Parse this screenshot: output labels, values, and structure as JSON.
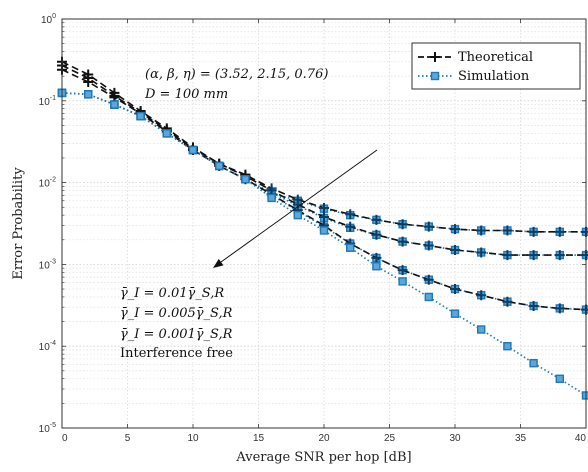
{
  "chart_data": {
    "type": "line",
    "xlabel": "Average SNR per hop [dB]",
    "ylabel": "Error Probability",
    "xlim": [
      0,
      40
    ],
    "ylim": [
      1e-05,
      1
    ],
    "yscale": "log",
    "grid": true,
    "legend_position": "top-right",
    "x_ticks": [
      0,
      5,
      10,
      15,
      20,
      25,
      30,
      35,
      40
    ],
    "x_tick_labels": [
      "0",
      "5",
      "10",
      "15",
      "20",
      "25",
      "30",
      "35",
      "40"
    ],
    "y_ticks": [
      1e-05,
      0.0001,
      0.001,
      0.01,
      0.1,
      1
    ],
    "y_tick_labels": [
      {
        "base": "10",
        "exp": "-5"
      },
      {
        "base": "10",
        "exp": "-4"
      },
      {
        "base": "10",
        "exp": "-3"
      },
      {
        "base": "10",
        "exp": "-2"
      },
      {
        "base": "10",
        "exp": "-1"
      },
      {
        "base": "10",
        "exp": "0"
      }
    ],
    "legend": [
      {
        "label": "Theoretical",
        "style": "dashed-black-plus"
      },
      {
        "label": "Simulation",
        "style": "dotted-blue-square"
      }
    ],
    "annotations": {
      "params_line1": "(α, β, η) = (3.52, 2.15, 0.76)",
      "params_line2": "D = 100 mm",
      "curve_labels": [
        "γ̄_I = 0.01γ̄_S,R",
        "γ̄_I = 0.005γ̄_S,R",
        "γ̄_I = 0.001γ̄_S,R",
        "Interference free"
      ]
    },
    "x": [
      0,
      2,
      4,
      6,
      8,
      10,
      12,
      14,
      16,
      18,
      20,
      22,
      24,
      26,
      28,
      30,
      32,
      34,
      36,
      38,
      40
    ],
    "series": [
      {
        "name": "γ̄_I = 0.01γ̄_S,R",
        "theoretical": [
          0.3,
          0.21,
          0.125,
          0.075,
          0.046,
          0.027,
          0.017,
          0.0125,
          0.0085,
          0.0062,
          0.0049,
          0.0041,
          0.0035,
          0.0031,
          0.0029,
          0.0027,
          0.0026,
          0.0026,
          0.0025,
          0.0025,
          0.0025
        ],
        "simulation": [
          0.125,
          0.12,
          0.09,
          0.065,
          0.04,
          0.025,
          0.016,
          0.011,
          0.0075,
          0.006,
          0.0048,
          0.004,
          0.0035,
          0.0031,
          0.0029,
          0.0027,
          0.0026,
          0.0026,
          0.0025,
          0.0025,
          0.0025
        ]
      },
      {
        "name": "γ̄_I = 0.005γ̄_S,R",
        "theoretical": [
          0.27,
          0.19,
          0.115,
          0.072,
          0.044,
          0.026,
          0.017,
          0.012,
          0.008,
          0.0054,
          0.0038,
          0.0029,
          0.0023,
          0.0019,
          0.0017,
          0.0015,
          0.0014,
          0.0013,
          0.0013,
          0.0013,
          0.0013
        ],
        "simulation": [
          0.125,
          0.12,
          0.09,
          0.065,
          0.04,
          0.025,
          0.016,
          0.011,
          0.0075,
          0.0052,
          0.0037,
          0.0028,
          0.0023,
          0.0019,
          0.0017,
          0.0015,
          0.0014,
          0.0013,
          0.0013,
          0.0013,
          0.0013
        ]
      },
      {
        "name": "γ̄_I = 0.001γ̄_S,R",
        "theoretical": [
          0.24,
          0.17,
          0.11,
          0.07,
          0.042,
          0.025,
          0.016,
          0.011,
          0.0072,
          0.0046,
          0.003,
          0.0018,
          0.0012,
          0.00085,
          0.00065,
          0.0005,
          0.00042,
          0.00035,
          0.00031,
          0.00029,
          0.00028
        ],
        "simulation": [
          0.125,
          0.12,
          0.09,
          0.065,
          0.04,
          0.025,
          0.016,
          0.011,
          0.007,
          0.0045,
          0.0029,
          0.0018,
          0.0012,
          0.00085,
          0.00065,
          0.0005,
          0.00042,
          0.00035,
          0.00031,
          0.00029,
          0.00028
        ]
      },
      {
        "name": "Interference free",
        "theoretical": [],
        "simulation": [
          0.125,
          0.12,
          0.09,
          0.065,
          0.04,
          0.025,
          0.016,
          0.011,
          0.0065,
          0.004,
          0.0026,
          0.0016,
          0.00095,
          0.00062,
          0.0004,
          0.00025,
          0.00016,
          0.0001,
          6.2e-05,
          4e-05,
          2.5e-05
        ]
      }
    ]
  }
}
